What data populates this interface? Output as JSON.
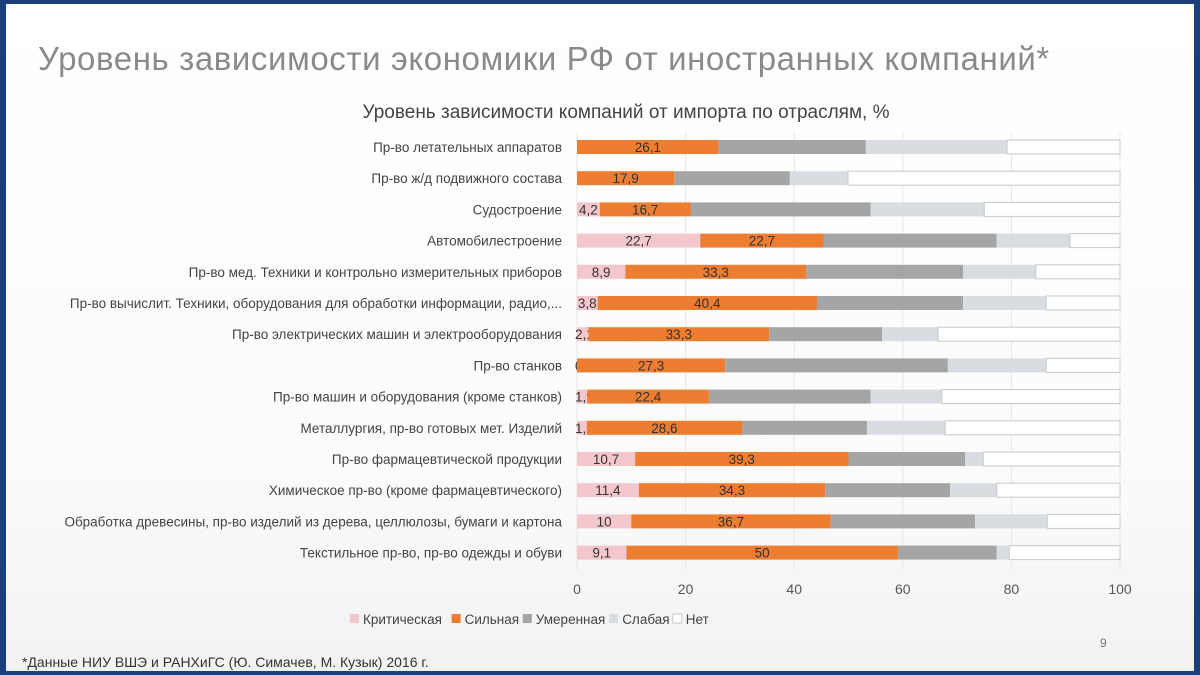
{
  "slide": {
    "title": "Уровень зависимости экономики РФ от иностранных компаний*",
    "footnote": "*Данные НИУ ВШЭ и РАНХиГС (Ю. Симачев, М. Кузык) 2016 г.",
    "page_number": "9"
  },
  "chart_data": {
    "type": "bar",
    "orientation": "horizontal",
    "stacked": true,
    "title": "Уровень зависимости компаний от импорта по отраслям, %",
    "xlim": [
      0,
      100
    ],
    "xticks": [
      "0",
      "20",
      "40",
      "60",
      "80",
      "100"
    ],
    "grid": true,
    "legend_position": "bottom",
    "categories": [
      "Пр-во летательных аппаратов",
      "Пр-во ж/д подвижного состава",
      "Судостроение",
      "Автомобилестроение",
      "Пр-во мед. Техники и контрольно измерительных приборов",
      "Пр-во вычислит. Техники, оборудования для обработки информации, радио,...",
      "Пр-во электрических машин и электрооборудования",
      "Пр-во станков",
      "Пр-во машин и оборудования (кроме станков)",
      "Металлургия, пр-во готовых мет. Изделий",
      "Пр-во фармацевтической продукции",
      "Химическое пр-во (кроме фармацевтического)",
      "Обработка древесины, пр-во изделий из дерева, целлюлозы, бумаги и картона",
      "Текстильное пр-во, пр-во одежды и обуви"
    ],
    "series": [
      {
        "name": "Критическая",
        "color": "#f4c7cc",
        "labeled": true,
        "values": [
          0,
          0,
          4.2,
          22.7,
          8.9,
          3.8,
          2.1,
          0,
          1.9,
          1.8,
          10.7,
          11.4,
          10,
          9.1
        ],
        "labels": [
          "",
          "",
          "4,2",
          "22,7",
          "8,9",
          "3,8",
          "2,1",
          "0",
          "1,9",
          "1,8",
          "10,7",
          "11,4",
          "10",
          "9,1"
        ]
      },
      {
        "name": "Сильная",
        "color": "#ed7d31",
        "labeled": true,
        "values": [
          26.1,
          17.9,
          16.7,
          22.7,
          33.3,
          40.4,
          33.3,
          27.3,
          22.4,
          28.6,
          39.3,
          34.3,
          36.7,
          50
        ],
        "labels": [
          "26,1",
          "17,9",
          "16,7",
          "22,7",
          "33,3",
          "40,4",
          "33,3",
          "27,3",
          "22,4",
          "28,6",
          "39,3",
          "34,3",
          "36,7",
          "50"
        ]
      },
      {
        "name": "Умеренная",
        "color": "#a5a5a5",
        "values": [
          27.1,
          21.3,
          33.2,
          31.9,
          28.9,
          26.9,
          20.8,
          41,
          29.8,
          23,
          21.5,
          23,
          26.6,
          18.2
        ]
      },
      {
        "name": "Слабая",
        "color": "#d9dde2",
        "values": [
          26,
          10.7,
          20.9,
          13.5,
          13.4,
          15.3,
          10.3,
          18.1,
          13.1,
          14.4,
          3.3,
          8.6,
          13.3,
          2.3
        ]
      },
      {
        "name": "Нет",
        "color": "#ffffff",
        "values": [
          20.8,
          50.1,
          25,
          9.2,
          15.5,
          13.6,
          33.5,
          13.6,
          32.8,
          32.2,
          25.2,
          22.7,
          13.4,
          20.4
        ]
      }
    ]
  }
}
